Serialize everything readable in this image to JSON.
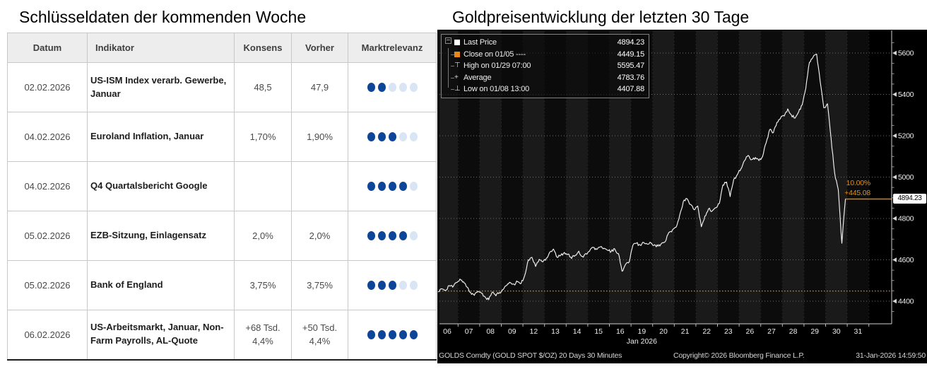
{
  "left_panel": {
    "title": "Schlüsseldaten der kommenden Woche",
    "table": {
      "columns": [
        "Datum",
        "Indikator",
        "Konsens",
        "Vorher",
        "Marktrelevanz"
      ],
      "rows": [
        {
          "datum": "02.02.2026",
          "indikator": "US-ISM Index verarb. Gewerbe, Januar",
          "konsens": "48,5",
          "vorher": "47,9",
          "relevanz": 2
        },
        {
          "datum": "04.02.2026",
          "indikator": "Euroland Inflation, Januar",
          "konsens": "1,70%",
          "vorher": "1,90%",
          "relevanz": 3
        },
        {
          "datum": "04.02.2026",
          "indikator": "Q4 Quartalsbericht Google",
          "konsens": "",
          "vorher": "",
          "relevanz": 4
        },
        {
          "datum": "05.02.2026",
          "indikator": "EZB-Sitzung, Einlagensatz",
          "konsens": "2,0%",
          "vorher": "2,0%",
          "relevanz": 4
        },
        {
          "datum": "05.02.2026",
          "indikator": "Bank of England",
          "konsens": "3,75%",
          "vorher": "3,75%",
          "relevanz": 3
        },
        {
          "datum": "06.02.2026",
          "indikator": "US-Arbeitsmarkt, Januar, Non-Farm Payrolls, AL-Quote",
          "konsens": "+68 Tsd. 4,4%",
          "vorher": "+50 Tsd. 4,4%",
          "relevanz": 5
        }
      ],
      "relevanz_max": 5
    },
    "colors": {
      "dot_active": "#0d4599",
      "dot_inactive": "#d9e5f5"
    }
  },
  "right_panel": {
    "title": "Goldpreisentwicklung der letzten 30 Tage",
    "legend": [
      {
        "symbol": "last-price-square",
        "label": "Last Price",
        "value": "4894.23"
      },
      {
        "symbol": "close-square",
        "label": "Close on 01/05 ----",
        "value": "4449.15"
      },
      {
        "symbol": "high-marker",
        "label": "High on 01/29 07:00",
        "value": "5595.47"
      },
      {
        "symbol": "average-marker",
        "label": "Average",
        "value": "4783.76"
      },
      {
        "symbol": "low-marker",
        "label": "Low on 01/08 13:00",
        "value": "4407.88"
      }
    ],
    "last_price_label": "4894.23",
    "annotations": {
      "pct": "10.00%",
      "abs": "+445.08"
    },
    "footer": {
      "left": "GOLDS Comdty (GOLD SPOT $/OZ) 20 Days 30 Minutes",
      "center": "Copyright© 2026 Bloomberg Finance L.P.",
      "right": "31-Jan-2026 14:59:50"
    },
    "colors": {
      "orange": "#e8891a",
      "orange_solid": "#d9820f",
      "line": "#f3f3f3"
    }
  },
  "chart_data": {
    "type": "line",
    "title": "Goldpreisentwicklung der letzten 30 Tage",
    "series_name": "GOLDS Comdty (GOLD SPOT $/OZ)",
    "interval": "30 Minutes",
    "period": "20 Days",
    "x_labels": [
      "06",
      "07",
      "08",
      "09",
      "12",
      "13",
      "14",
      "15",
      "16",
      "19",
      "20",
      "21",
      "22",
      "23",
      "26",
      "27",
      "28",
      "29",
      "30",
      "31"
    ],
    "x_axis_period_label": "Jan 2026",
    "samples_per_day": 6,
    "prices": [
      4445,
      4460,
      4452,
      4476,
      4468,
      4490,
      4507,
      4494,
      4468,
      4442,
      4428,
      4448,
      4438,
      4420,
      4407,
      4444,
      4426,
      4442,
      4456,
      4476,
      4490,
      4482,
      4494,
      4486,
      4525,
      4600,
      4612,
      4568,
      4602,
      4590,
      4608,
      4638,
      4652,
      4612,
      4622,
      4636,
      4628,
      4606,
      4622,
      4642,
      4616,
      4630,
      4642,
      4660,
      4650,
      4663,
      4656,
      4646,
      4640,
      4652,
      4630,
      4545,
      4578,
      4590,
      4670,
      4680,
      4672,
      4684,
      4676,
      4682,
      4673,
      4666,
      4680,
      4688,
      4732,
      4745,
      4758,
      4815,
      4882,
      4896,
      4868,
      4842,
      4860,
      4760,
      4812,
      4846,
      4836,
      4852,
      4872,
      4962,
      4976,
      4906,
      4988,
      5012,
      5040,
      5080,
      5105,
      5085,
      5095,
      5080,
      5100,
      5165,
      5230,
      5215,
      5265,
      5285,
      5295,
      5330,
      5300,
      5285,
      5315,
      5350,
      5430,
      5555,
      5580,
      5595,
      5460,
      5335,
      5355,
      5190,
      5020,
      4940,
      4680,
      4894.23
    ],
    "yticks": [
      4400,
      4600,
      4800,
      5000,
      5200,
      5400,
      5600
    ],
    "ylim": [
      4290,
      5709
    ],
    "last_price": 4894.23,
    "close_on_0105": 4449.15,
    "high_on_0129_0700": 5595.47,
    "average": 4783.76,
    "low_on_0108_1300": 4407.88,
    "change_pct": "10.00%",
    "change_abs": "+445.08",
    "legend_position": "top-left",
    "grid": "horizontal-dashed"
  }
}
